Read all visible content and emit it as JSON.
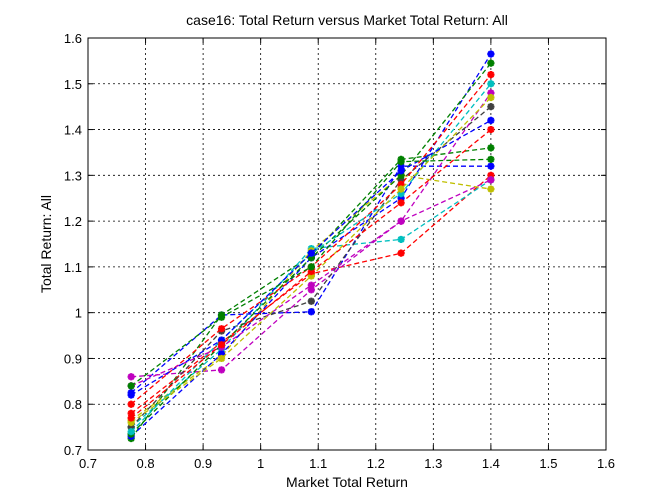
{
  "chart_data": {
    "type": "line",
    "title": "case16: Total Return versus Market Total Return: All",
    "xlabel": "Market Total Return",
    "ylabel": "Total Return: All",
    "xlim": [
      0.7,
      1.6
    ],
    "ylim": [
      0.7,
      1.6
    ],
    "xticks": [
      "0.7",
      "0.8",
      "0.9",
      "1",
      "1.1",
      "1.2",
      "1.3",
      "1.4",
      "1.5",
      "1.6"
    ],
    "yticks": [
      "0.7",
      "0.8",
      "0.9",
      "1",
      "1.1",
      "1.2",
      "1.3",
      "1.4",
      "1.5",
      "1.6"
    ],
    "grid": true,
    "line_style": "dashed",
    "marker": "asterisk",
    "x": [
      0.775,
      0.932,
      1.088,
      1.244,
      1.4
    ],
    "series": [
      {
        "color": "#0000ff",
        "values": [
          0.825,
          0.995,
          1.002,
          1.32,
          1.32
        ]
      },
      {
        "color": "#008000",
        "values": [
          0.725,
          0.995,
          1.125,
          1.335,
          1.36
        ]
      },
      {
        "color": "#ff0000",
        "values": [
          0.78,
          0.935,
          1.085,
          1.13,
          1.3
        ]
      },
      {
        "color": "#00bfbf",
        "values": [
          0.75,
          0.92,
          1.14,
          1.16,
          1.29
        ]
      },
      {
        "color": "#bf00bf",
        "values": [
          0.86,
          0.875,
          1.05,
          1.2,
          1.29
        ]
      },
      {
        "color": "#bfbf00",
        "values": [
          0.765,
          0.905,
          1.135,
          1.3,
          1.27
        ]
      },
      {
        "color": "#404040",
        "values": [
          0.75,
          0.96,
          1.025,
          1.29,
          1.45
        ]
      },
      {
        "color": "#0000ff",
        "values": [
          0.73,
          0.91,
          1.12,
          1.25,
          1.565
        ]
      },
      {
        "color": "#008000",
        "values": [
          0.735,
          0.93,
          1.12,
          1.3,
          1.545
        ]
      },
      {
        "color": "#ff0000",
        "values": [
          0.8,
          0.965,
          1.1,
          1.28,
          1.52
        ]
      },
      {
        "color": "#00bfbf",
        "values": [
          0.74,
          0.94,
          1.13,
          1.26,
          1.5
        ]
      },
      {
        "color": "#bf00bf",
        "values": [
          0.84,
          0.925,
          1.06,
          1.2,
          1.48
        ]
      },
      {
        "color": "#bfbf00",
        "values": [
          0.76,
          0.9,
          1.08,
          1.27,
          1.47
        ]
      },
      {
        "color": "#0000ff",
        "values": [
          0.82,
          0.94,
          1.13,
          1.31,
          1.42
        ]
      },
      {
        "color": "#ff0000",
        "values": [
          0.77,
          0.93,
          1.09,
          1.24,
          1.4
        ]
      },
      {
        "color": "#008000",
        "values": [
          0.84,
          0.99,
          1.1,
          1.33,
          1.335
        ]
      }
    ]
  }
}
